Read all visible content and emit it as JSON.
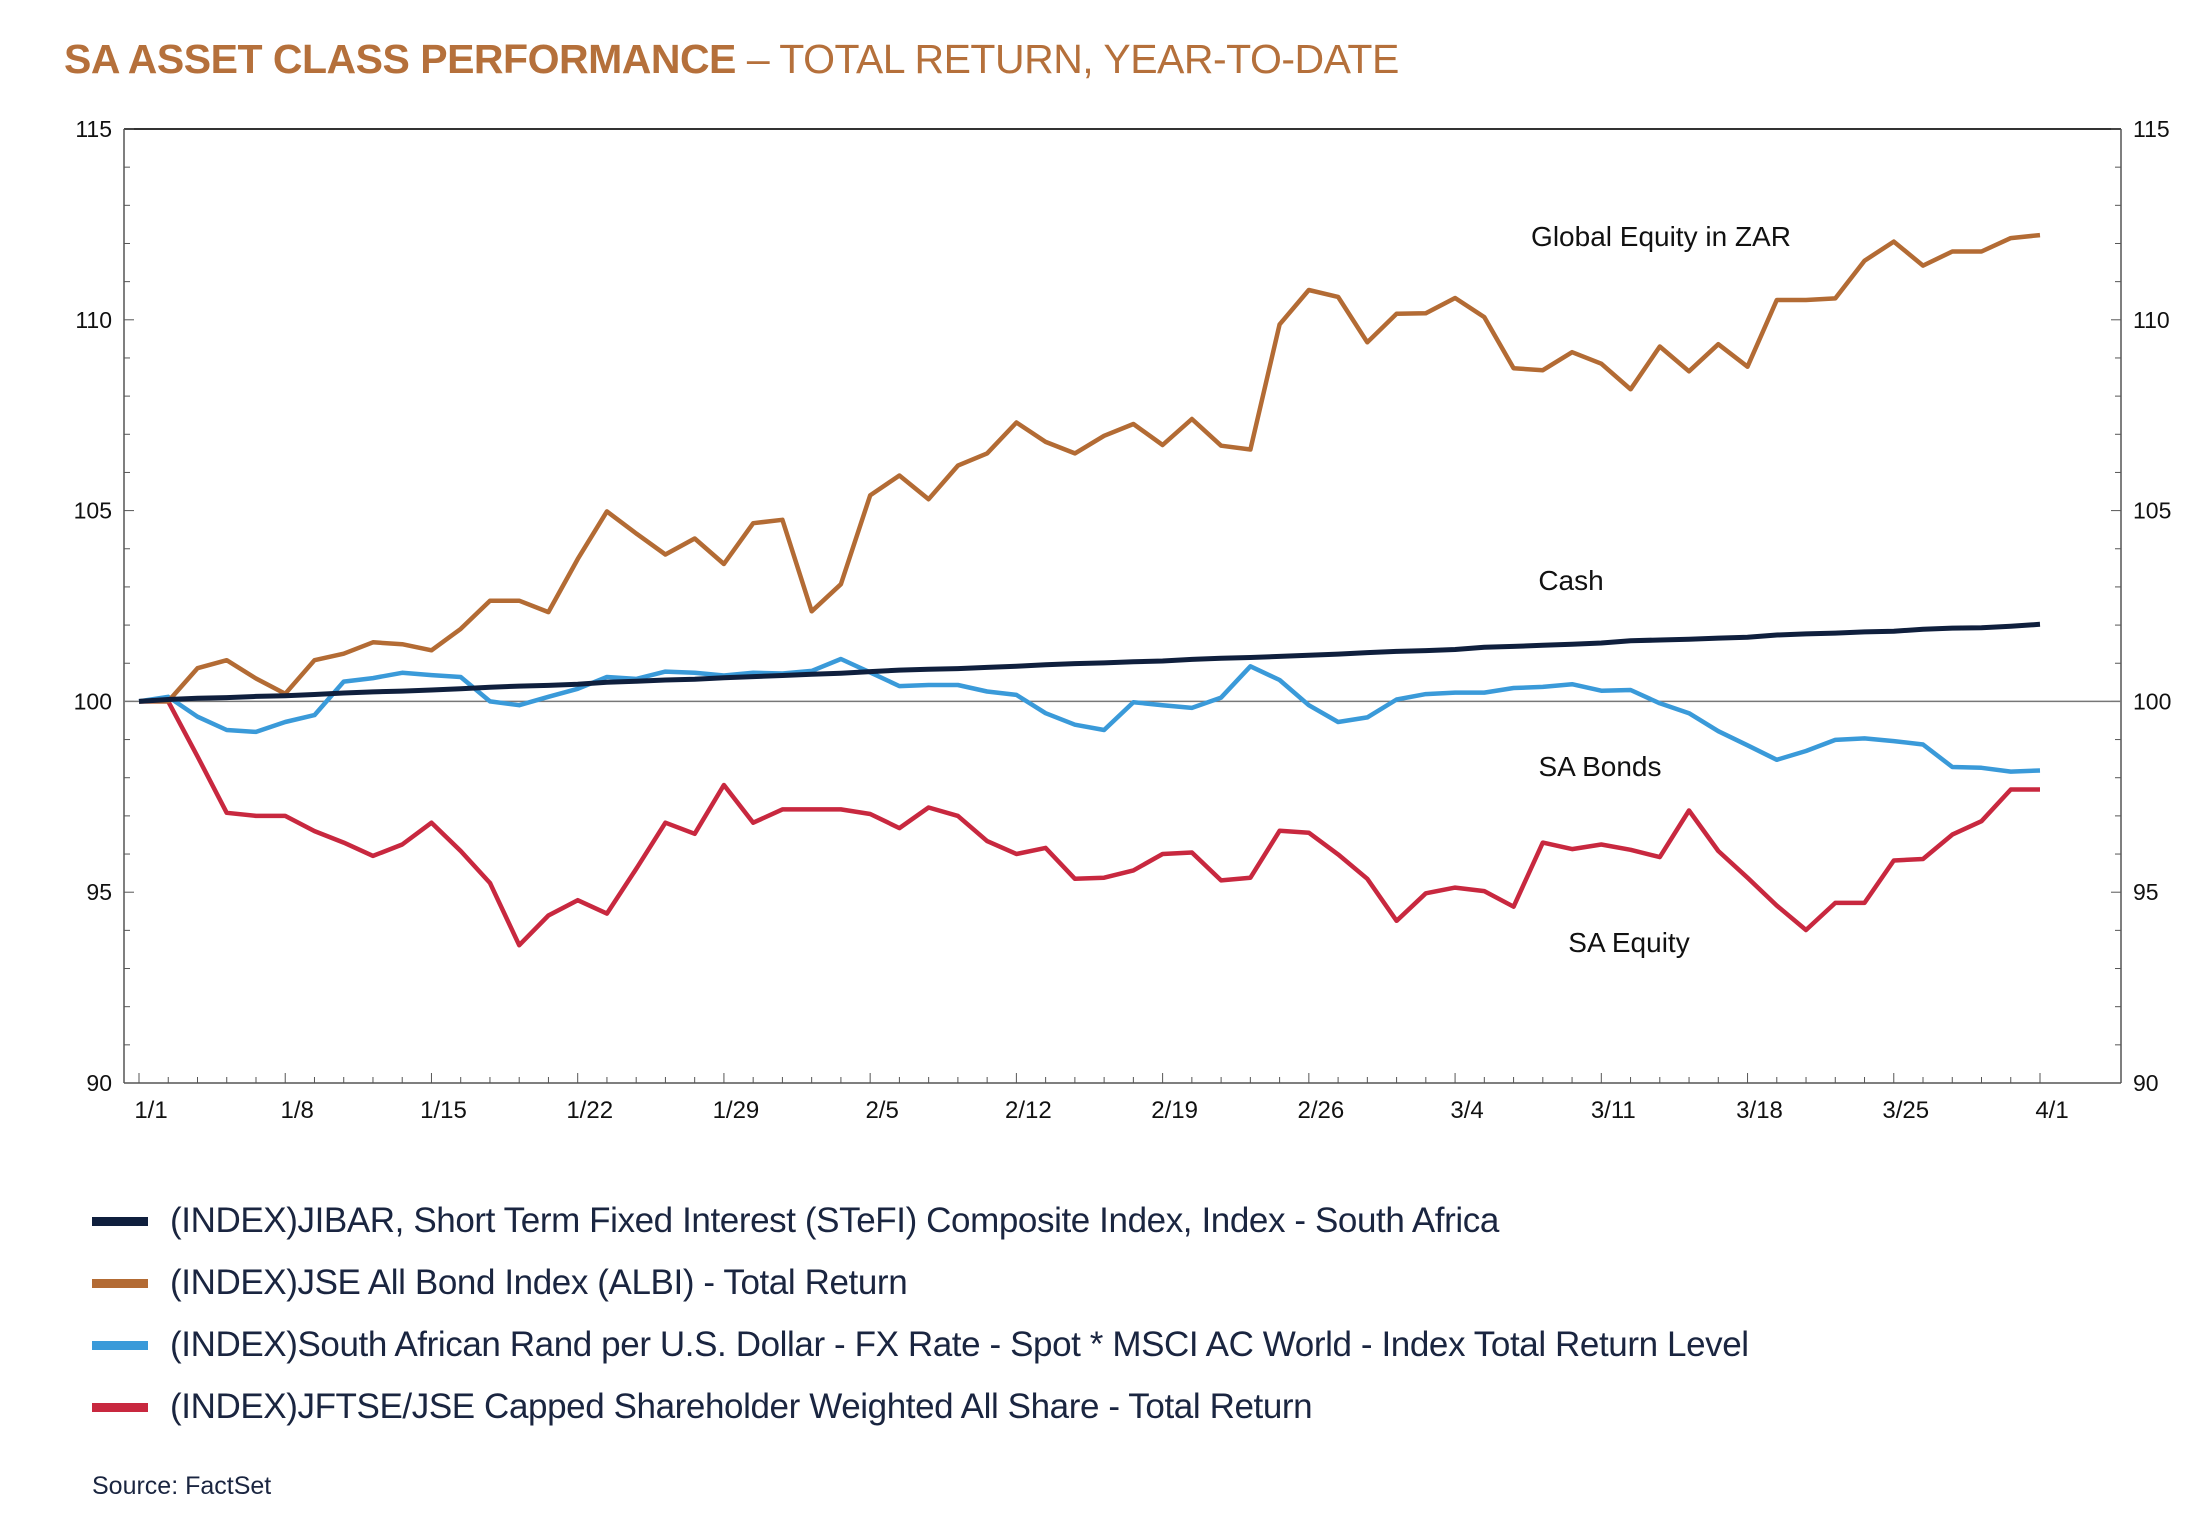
{
  "title": {
    "bold": "SA ASSET CLASS PERFORMANCE",
    "rest": " – TOTAL RETURN, YEAR-TO-DATE",
    "color": "#b5703b"
  },
  "source": "Source: FactSet",
  "chart_data": {
    "type": "line",
    "title": "SA ASSET CLASS PERFORMANCE – TOTAL RETURN, YEAR-TO-DATE",
    "xlabel": "",
    "ylabel": "",
    "ylim": [
      90,
      115
    ],
    "yticks": [
      "90",
      "95",
      "100",
      "105",
      "110",
      "115"
    ],
    "secondary_yticks": [
      "90",
      "95",
      "100",
      "105",
      "110",
      "115"
    ],
    "xticks": [
      "1/1",
      "1/8",
      "1/15",
      "1/22",
      "1/29",
      "2/5",
      "2/12",
      "2/19",
      "2/26",
      "3/4",
      "3/11",
      "3/18",
      "3/25",
      "4/1"
    ],
    "reference_line": 100,
    "grid": false,
    "legend_position": "bottom",
    "x": [
      "1/1",
      "1/2",
      "1/3",
      "1/4",
      "1/5",
      "1/8",
      "1/9",
      "1/10",
      "1/11",
      "1/12",
      "1/15",
      "1/16",
      "1/17",
      "1/18",
      "1/19",
      "1/22",
      "1/23",
      "1/24",
      "1/25",
      "1/26",
      "1/29",
      "1/30",
      "1/31",
      "2/1",
      "2/2",
      "2/5",
      "2/6",
      "2/7",
      "2/8",
      "2/9",
      "2/12",
      "2/13",
      "2/14",
      "2/15",
      "2/16",
      "2/19",
      "2/20",
      "2/21",
      "2/22",
      "2/23",
      "2/26",
      "2/27",
      "2/28",
      "2/29",
      "3/1",
      "3/4",
      "3/5",
      "3/6",
      "3/7",
      "3/8",
      "3/11",
      "3/12",
      "3/13",
      "3/14",
      "3/15",
      "3/18",
      "3/19",
      "3/20",
      "3/21",
      "3/22",
      "3/25",
      "3/26",
      "3/27",
      "3/28",
      "3/29",
      "4/1"
    ],
    "series": [
      {
        "name": "(INDEX)JIBAR, Short Term Fixed Interest (STeFI) Composite Index, Index - South Africa",
        "label": "Cash",
        "color": "#0f1f3d",
        "values": [
          100.0,
          100.05,
          100.08,
          100.1,
          100.13,
          100.15,
          100.18,
          100.22,
          100.25,
          100.27,
          100.3,
          100.33,
          100.37,
          100.4,
          100.42,
          100.45,
          100.5,
          100.53,
          100.56,
          100.58,
          100.62,
          100.65,
          100.68,
          100.71,
          100.74,
          100.78,
          100.82,
          100.84,
          100.86,
          100.89,
          100.92,
          100.96,
          100.99,
          101.01,
          101.04,
          101.06,
          101.1,
          101.13,
          101.15,
          101.18,
          101.21,
          101.24,
          101.28,
          101.31,
          101.33,
          101.36,
          101.42,
          101.44,
          101.47,
          101.5,
          101.53,
          101.59,
          101.61,
          101.63,
          101.66,
          101.68,
          101.74,
          101.77,
          101.79,
          101.82,
          101.84,
          101.89,
          101.92,
          101.93,
          101.97,
          102.02
        ]
      },
      {
        "name": "(INDEX)JSE All Bond Index (ALBI) - Total Return",
        "label": "Global Equity in ZAR",
        "color": "#b36b34",
        "values": [
          100.0,
          100.0,
          100.87,
          101.08,
          100.6,
          100.2,
          101.08,
          101.25,
          101.55,
          101.5,
          101.34,
          101.9,
          102.64,
          102.64,
          102.34,
          103.73,
          104.98,
          104.4,
          103.85,
          104.27,
          103.6,
          104.67,
          104.76,
          102.36,
          103.07,
          105.4,
          105.92,
          105.3,
          106.18,
          106.5,
          107.31,
          106.8,
          106.5,
          106.96,
          107.27,
          106.72,
          107.4,
          106.7,
          106.6,
          109.88,
          110.78,
          110.6,
          109.41,
          110.16,
          110.17,
          110.57,
          110.07,
          108.73,
          108.68,
          109.15,
          108.85,
          108.18,
          109.3,
          108.65,
          109.36,
          108.77,
          110.52,
          110.52,
          110.56,
          111.55,
          112.05,
          111.42,
          111.79,
          111.79,
          112.14,
          112.22
        ]
      },
      {
        "name": "(INDEX)South African Rand per U.S. Dollar - FX Rate - Spot * MSCI AC World - Index Total Return Level",
        "label": "SA Bonds",
        "color": "#3a9ad9",
        "values": [
          100.0,
          100.12,
          99.6,
          99.25,
          99.2,
          99.46,
          99.64,
          100.52,
          100.61,
          100.75,
          100.69,
          100.64,
          100.0,
          99.9,
          100.12,
          100.33,
          100.64,
          100.59,
          100.78,
          100.75,
          100.68,
          100.75,
          100.73,
          100.8,
          101.11,
          100.76,
          100.4,
          100.43,
          100.43,
          100.26,
          100.17,
          99.69,
          99.39,
          99.25,
          99.98,
          99.9,
          99.83,
          100.1,
          100.92,
          100.56,
          99.9,
          99.46,
          99.58,
          100.05,
          100.19,
          100.23,
          100.23,
          100.35,
          100.38,
          100.45,
          100.28,
          100.3,
          99.95,
          99.69,
          99.22,
          98.85,
          98.47,
          98.7,
          98.99,
          99.03,
          98.96,
          98.87,
          98.28,
          98.26,
          98.16,
          98.19
        ]
      },
      {
        "name": "(INDEX)JFTSE/JSE Capped Shareholder Weighted All Share - Total Return",
        "label": "SA Equity",
        "color": "#c8283f",
        "values": [
          100.0,
          100.0,
          98.56,
          97.08,
          97.0,
          97.0,
          96.6,
          96.3,
          95.95,
          96.25,
          96.82,
          96.08,
          95.24,
          93.61,
          94.39,
          94.79,
          94.44,
          95.61,
          96.82,
          96.53,
          97.81,
          96.82,
          97.17,
          97.17,
          97.17,
          97.05,
          96.68,
          97.22,
          97.0,
          96.34,
          96.0,
          96.16,
          95.35,
          95.38,
          95.57,
          96.0,
          96.04,
          95.31,
          95.38,
          96.61,
          96.56,
          95.99,
          95.35,
          94.25,
          94.97,
          95.12,
          95.03,
          94.62,
          96.3,
          96.13,
          96.25,
          96.11,
          95.92,
          97.14,
          96.08,
          95.38,
          94.65,
          94.01,
          94.72,
          94.72,
          95.83,
          95.87,
          96.51,
          96.86,
          97.69,
          97.69
        ]
      }
    ]
  }
}
